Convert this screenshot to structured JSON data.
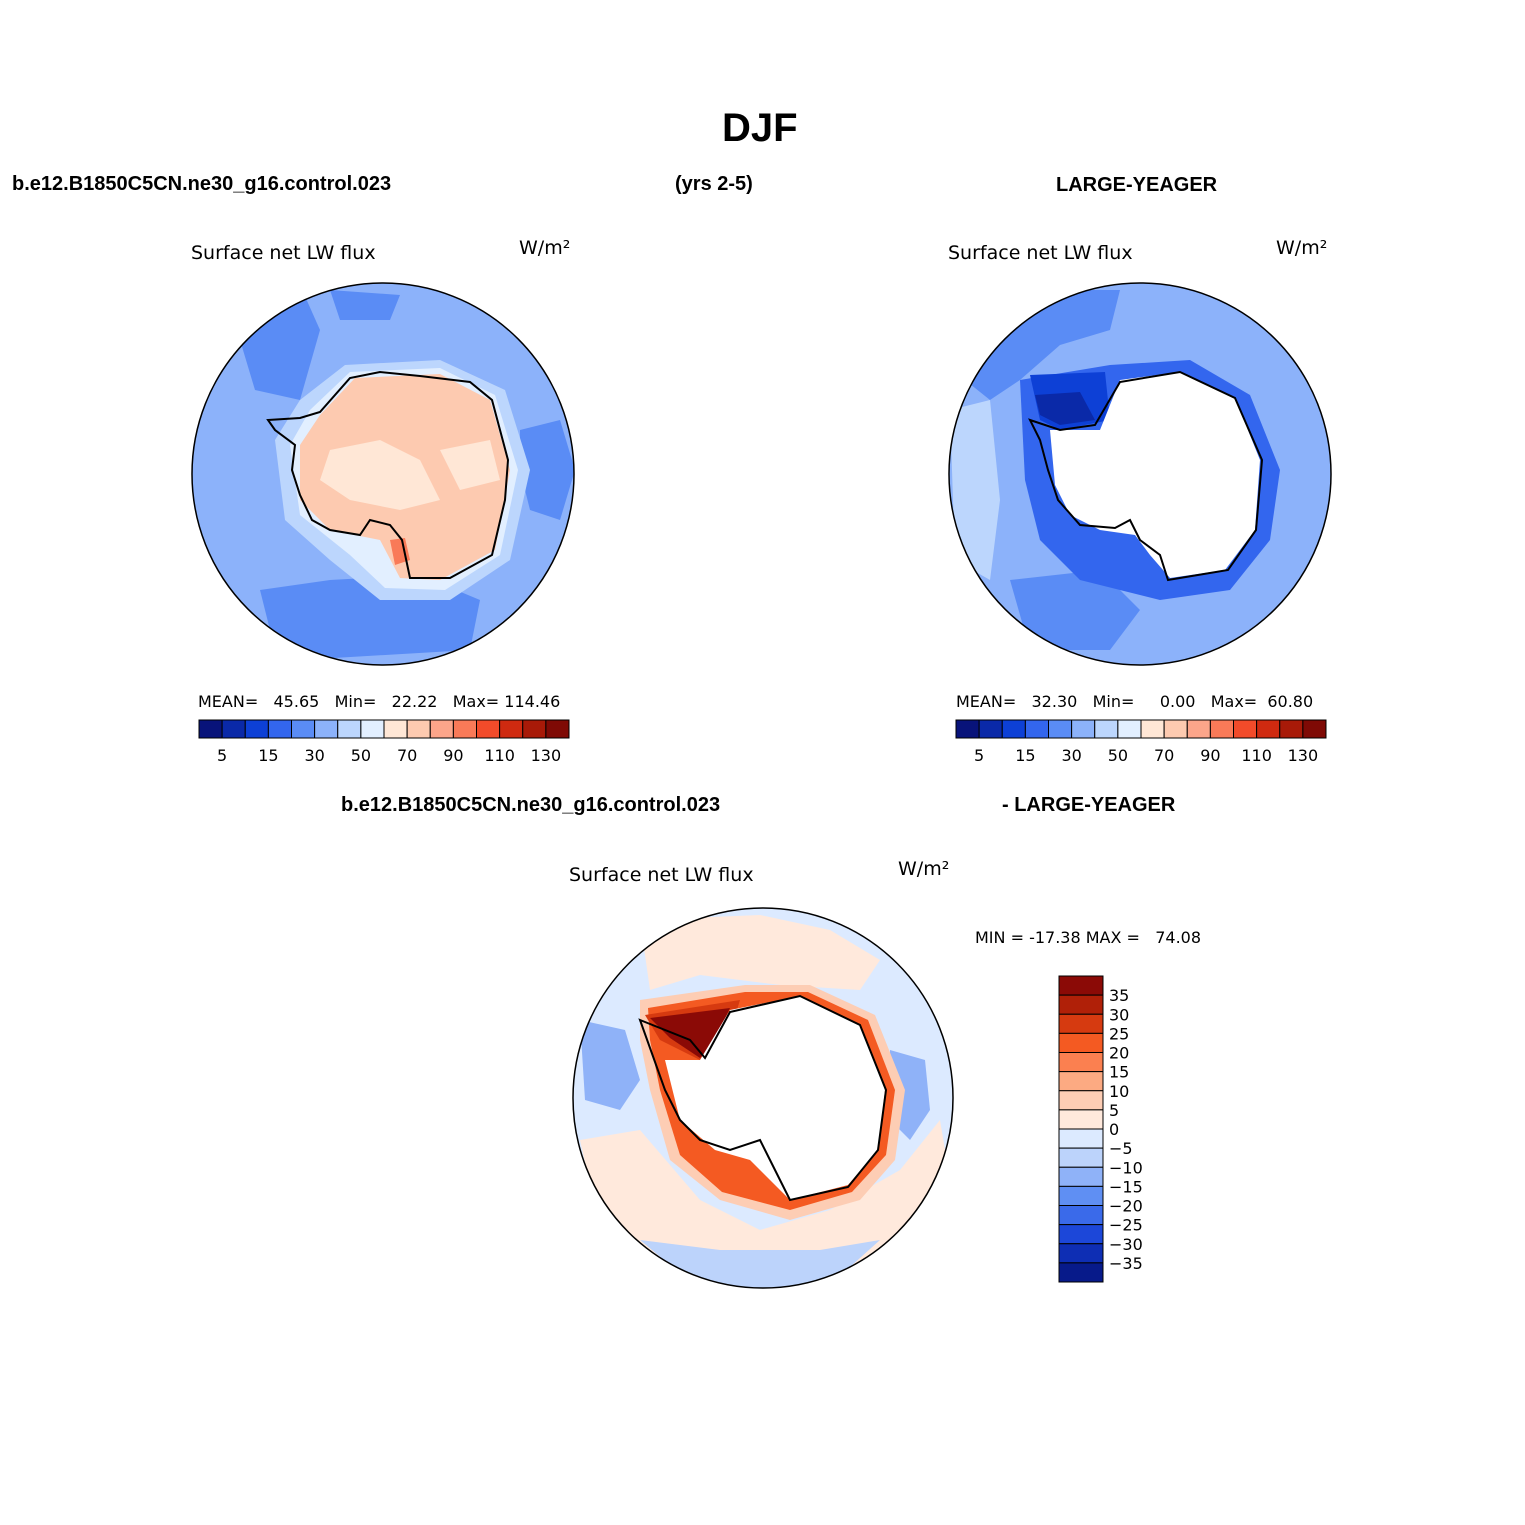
{
  "title": "DJF",
  "header": {
    "case_name": "b.e12.B1850C5CN.ne30_g16.control.023",
    "years": "(yrs 2-5)",
    "obs_name": "LARGE-YEAGER"
  },
  "diff_header": {
    "case_name": "b.e12.B1850C5CN.ne30_g16.control.023",
    "obs_name": "- LARGE-YEAGER"
  },
  "panels": {
    "model": {
      "variable": "Surface net LW flux",
      "units": "W/m²",
      "stats": {
        "mean_label": "MEAN=",
        "mean": "45.65",
        "min_label": "Min=",
        "min": "22.22",
        "max_label": "Max=",
        "max": "114.46"
      }
    },
    "obs": {
      "variable": "Surface net LW flux",
      "units": "W/m²",
      "stats": {
        "mean_label": "MEAN=",
        "mean": "32.30",
        "min_label": "Min=",
        "min": "0.00",
        "max_label": "Max=",
        "max": "60.80"
      }
    },
    "diff": {
      "variable": "Surface net LW flux",
      "units": "W/m²",
      "stats": {
        "min_label": "MIN =",
        "min": "-17.38",
        "max_label": "MAX =",
        "max": "74.08"
      }
    }
  },
  "colorbar_abs": {
    "colors": [
      "#08137a",
      "#0a29a8",
      "#0d40d6",
      "#3366ee",
      "#5a8cf5",
      "#8cb2fa",
      "#bcd6fd",
      "#e2efff",
      "#ffe7d6",
      "#fdcab0",
      "#fca58a",
      "#f97a58",
      "#f24b2a",
      "#cf2a10",
      "#a81a08",
      "#7f0a05"
    ],
    "tick_labels": [
      "5",
      "15",
      "30",
      "50",
      "70",
      "90",
      "110",
      "130"
    ]
  },
  "colorbar_diff": {
    "colors": [
      "#8b0a06",
      "#b02008",
      "#d63a10",
      "#f45a22",
      "#fb8050",
      "#fcaa82",
      "#fdcdb4",
      "#ffe9dc",
      "#dceaff",
      "#bcd3fb",
      "#8fb2f8",
      "#5f8ff3",
      "#3a6aea",
      "#1c47d9",
      "#0e2eb4",
      "#071a8a"
    ],
    "tick_labels": [
      "35",
      "30",
      "25",
      "20",
      "15",
      "10",
      "5",
      "0",
      "−5",
      "−10",
      "−15",
      "−20",
      "−25",
      "−30",
      "−35"
    ]
  },
  "map_colors": {
    "model": {
      "ocean": "#8cb2fa",
      "ocean_deep": "#5a8cf5",
      "ocean_edge": "#bcd6fd",
      "ice_ring": "#e2efff",
      "land": "#ffe7d6",
      "land_warm": "#fdcab0",
      "hot": "#f97a58"
    },
    "obs": {
      "ocean": "#8cb2fa",
      "ocean_deep": "#5a8cf5",
      "ocean_light": "#bcd6fd",
      "coast_dark": "#3366ee",
      "coast_darker": "#0d40d6",
      "pool": "#0a29a8",
      "land": "#ffffff"
    },
    "diff": {
      "base": "#dceaff",
      "warm": "#ffe9dc",
      "cool": "#bcd3fb",
      "cooler": "#8fb2f8",
      "ring1": "#fdcdb4",
      "ring2": "#f45a22",
      "ring3": "#d63a10",
      "ring4": "#8b0a06",
      "land": "#ffffff"
    }
  }
}
